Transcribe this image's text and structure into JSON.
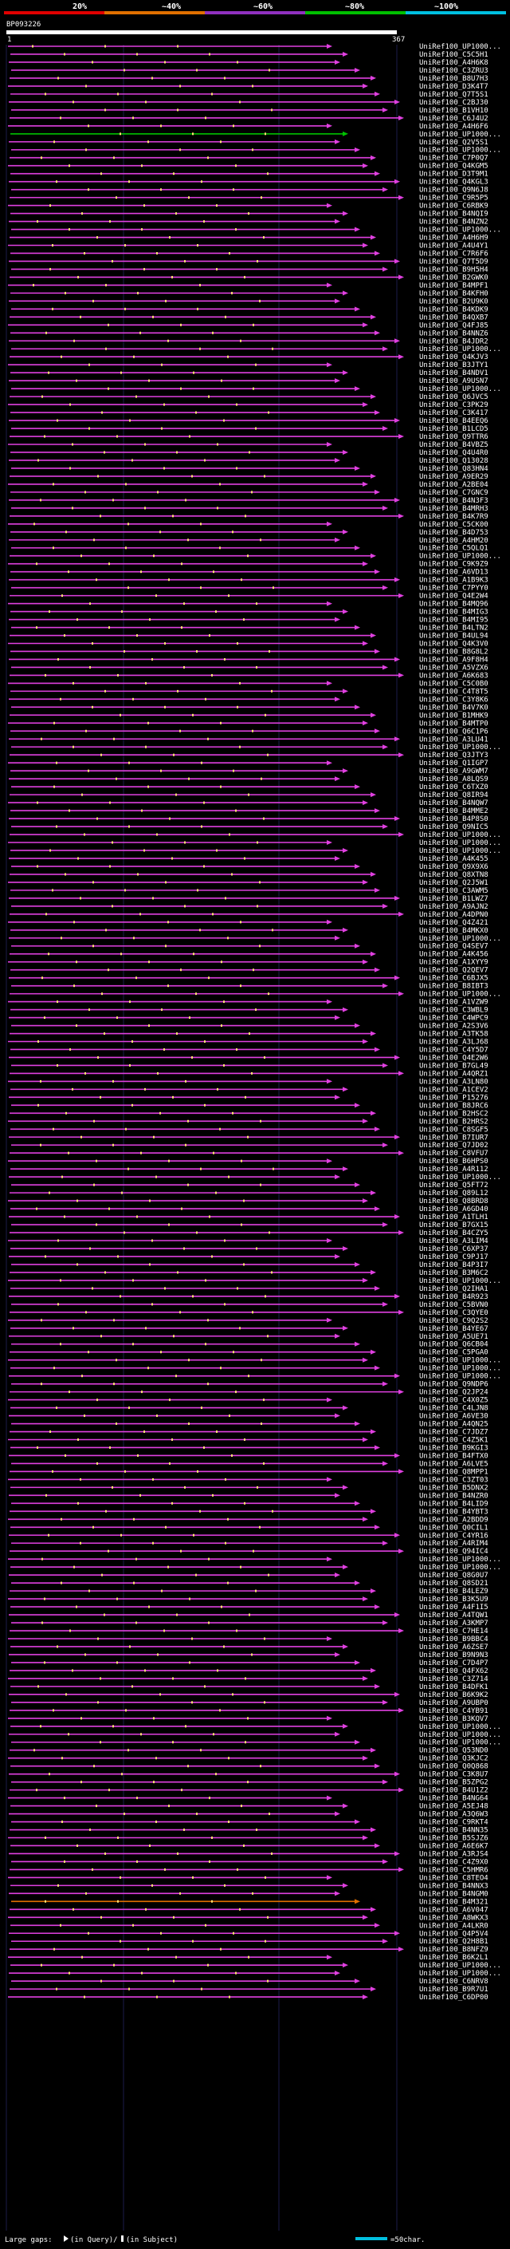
{
  "chart_data": {
    "type": "alignment-map",
    "query_id": "BP093226",
    "query_start": "1",
    "query_end": "367",
    "scale_labels": [
      "20%",
      "~40%",
      "~60%",
      "~80%",
      "~100%"
    ],
    "scale_colors": [
      "#e00000",
      "#e07000",
      "#9030c0",
      "#00c000",
      "#00c0e0"
    ],
    "hit_color": "#e040e0",
    "high_identity_color": "#00c000",
    "mid_identity_color": "#e07000",
    "subjects": [
      "UniRef100_UP1000...",
      "UniRef100_C5C5H1",
      "UniRef100_A4H6K8",
      "UniRef100_C3ZRU3",
      "UniRef100_B8U7H3",
      "UniRef100_D3K4T7",
      "UniRef100_Q7T5S1",
      "UniRef100_C2BJ30",
      "UniRef100_B1VH10",
      "UniRef100_C6J4U2",
      "UniRef100_A4H6F6",
      "UniRef100_UP1000...",
      "UniRef100_Q2V5S1",
      "UniRef100_UP1000...",
      "UniRef100_C7P0Q7",
      "UniRef100_Q4KGM5",
      "UniRef100_D3T9M1",
      "UniRef100_Q4KGL3",
      "UniRef100_Q9N6J8",
      "UniRef100_C9R5P5",
      "UniRef100_C6RBK9",
      "UniRef100_B4NQI9",
      "UniRef100_B4NZN2",
      "UniRef100_UP1000...",
      "UniRef100_A4H6H9",
      "UniRef100_A4U4Y1",
      "UniRef100_C7R6F6",
      "UniRef100_Q7T5D9",
      "UniRef100_B9H5H4",
      "UniRef100_B2GWK0",
      "UniRef100_B4MPF1",
      "UniRef100_B4KFH0",
      "UniRef100_B2U9K0",
      "UniRef100_B4KDK9",
      "UniRef100_B4QXB7",
      "UniRef100_Q4FJ85",
      "UniRef100_B4NNZ6",
      "UniRef100_B4JDR2",
      "UniRef100_UP1000...",
      "UniRef100_Q4KJV3",
      "UniRef100_B3JTY1",
      "UniRef100_B4NDV1",
      "UniRef100_A9USN7",
      "UniRef100_UP1000...",
      "UniRef100_Q6JVC5",
      "UniRef100_C3PK29",
      "UniRef100_C3K417",
      "UniRef100_B4EEQ6",
      "UniRef100_B1LCD5",
      "UniRef100_Q9TTR6",
      "UniRef100_B4VBZ5",
      "UniRef100_Q4U4R0",
      "UniRef100_Q13028",
      "UniRef100_Q83HN4",
      "UniRef100_A9ER29",
      "UniRef100_A2BE04",
      "UniRef100_C7GNC9",
      "UniRef100_B4N3F3",
      "UniRef100_B4MRH3",
      "UniRef100_B4K7R9",
      "UniRef100_C5CK00",
      "UniRef100_B4D753",
      "UniRef100_A4HM20",
      "UniRef100_C5QLQ1",
      "UniRef100_UP1000...",
      "UniRef100_C9K9Z9",
      "UniRef100_A6VD13",
      "UniRef100_A1B9K3",
      "UniRef100_C7PYY0",
      "UniRef100_Q4E2W4",
      "UniRef100_B4MQ96",
      "UniRef100_B4MIG3",
      "UniRef100_B4MI95",
      "UniRef100_B4LTN2",
      "UniRef100_B4UL94",
      "UniRef100_Q4K3V0",
      "UniRef100_B8G8L2",
      "UniRef100_A9F8H4",
      "UniRef100_A5VZX6",
      "UniRef100_A6K683",
      "UniRef100_C5C0B0",
      "UniRef100_C4T8T5",
      "UniRef100_C3Y8K6",
      "UniRef100_B4V7K0",
      "UniRef100_B1MHK9",
      "UniRef100_B4MTP0",
      "UniRef100_Q6C1P6",
      "UniRef100_A3LU41",
      "UniRef100_UP1000...",
      "UniRef100_Q3JTY3",
      "UniRef100_Q1IGP7",
      "UniRef100_A9GWM7",
      "UniRef100_A8LQS9",
      "UniRef100_C6TXZ0",
      "UniRef100_Q8IR94",
      "UniRef100_B4NQW7",
      "UniRef100_B4MME2",
      "UniRef100_B4P8S0",
      "UniRef100_Q9NIC5",
      "UniRef100_UP1000...",
      "UniRef100_UP1000...",
      "UniRef100_UP1000...",
      "UniRef100_A4K455",
      "UniRef100_Q9X9X6",
      "UniRef100_Q8XTN8",
      "UniRef100_Q2J5W1",
      "UniRef100_C3AWM5",
      "UniRef100_B1LWZ7",
      "UniRef100_A9AJN2",
      "UniRef100_A4DPN0",
      "UniRef100_Q4Z421",
      "UniRef100_B4MKX0",
      "UniRef100_UP1000...",
      "UniRef100_Q4SEV7",
      "UniRef100_A4K456",
      "UniRef100_A1XYY9",
      "UniRef100_Q2QEV7",
      "UniRef100_C6BJX5",
      "UniRef100_B8IBT3",
      "UniRef100_UP1000...",
      "UniRef100_A1VZW9",
      "UniRef100_C3WBL9",
      "UniRef100_C4WPC9",
      "UniRef100_A2S3V6",
      "UniRef100_A3TK58",
      "UniRef100_A3LJ68",
      "UniRef100_C4Y5D7",
      "UniRef100_Q4E2W6",
      "UniRef100_B7GL49",
      "UniRef100_A4QRZ1",
      "UniRef100_A3LN80",
      "UniRef100_A1CEV2",
      "UniRef100_P15276",
      "UniRef100_B8JRC6",
      "UniRef100_B2HSC2",
      "UniRef100_B2HRS2",
      "UniRef100_C8SGF5",
      "UniRef100_B7IUR7",
      "UniRef100_Q7JD02",
      "UniRef100_C8VFU7",
      "UniRef100_B6HPS0",
      "UniRef100_A4R112",
      "UniRef100_UP1000...",
      "UniRef100_Q5FT72",
      "UniRef100_Q89L12",
      "UniRef100_Q8BRD8",
      "UniRef100_A6GD40",
      "UniRef100_A1TLH1",
      "UniRef100_B7GX15",
      "UniRef100_B4CZY5",
      "UniRef100_A3LIM4",
      "UniRef100_C6XP37",
      "UniRef100_C9PJ17",
      "UniRef100_B4P3I7",
      "UniRef100_B3M6C2",
      "UniRef100_UP1000...",
      "UniRef100_Q2IHA1",
      "UniRef100_B4R923",
      "UniRef100_C5BVN0",
      "UniRef100_C3QYE0",
      "UniRef100_C9Q2S2",
      "UniRef100_B4YE67",
      "UniRef100_A5UE71",
      "UniRef100_Q6CB04",
      "UniRef100_C5PGA0",
      "UniRef100_UP1000...",
      "UniRef100_UP1000...",
      "UniRef100_UP1000...",
      "UniRef100_Q9NDP6",
      "UniRef100_Q2JP24",
      "UniRef100_C4X0Z5",
      "UniRef100_C4LJN8",
      "UniRef100_A6VE30",
      "UniRef100_A4QN25",
      "UniRef100_C7JDZ7",
      "UniRef100_C4Z5K1",
      "UniRef100_B9KGI3",
      "UniRef100_B4FTX0",
      "UniRef100_A6LVE5",
      "UniRef100_Q8MPP1",
      "UniRef100_C3ZT03",
      "UniRef100_B5DNX2",
      "UniRef100_B4NZR0",
      "UniRef100_B4LID9",
      "UniRef100_B4YBT3",
      "UniRef100_A2BDD9",
      "UniRef100_Q0CIL1",
      "UniRef100_C4YR16",
      "UniRef100_A4RIM4",
      "UniRef100_Q94IC4",
      "UniRef100_UP1000...",
      "UniRef100_UP1000...",
      "UniRef100_Q8G0U7",
      "UniRef100_Q8SD21",
      "UniRef100_B4LEZ9",
      "UniRef100_B3K5U9",
      "UniRef100_A4F1I5",
      "UniRef100_A4TQW1",
      "UniRef100_A3KMP7",
      "UniRef100_C7HE14",
      "UniRef100_B9BBC4",
      "UniRef100_A6ZSE7",
      "UniRef100_B9N9N3",
      "UniRef100_C7D4P7",
      "UniRef100_Q4FX62",
      "UniRef100_C3Z714",
      "UniRef100_B4DFK1",
      "UniRef100_B6K9K2",
      "UniRef100_A9UBP0",
      "UniRef100_C4YB91",
      "UniRef100_B3KQV7",
      "UniRef100_UP1000...",
      "UniRef100_UP1000...",
      "UniRef100_UP1000...",
      "UniRef100_Q53ND0",
      "UniRef100_Q3KJC2",
      "UniRef100_Q0Q868",
      "UniRef100_C3K8U7",
      "UniRef100_B5ZPG2",
      "UniRef100_B4U1Z2",
      "UniRef100_B4NG64",
      "UniRef100_A5EJ48",
      "UniRef100_A3Q6W3",
      "UniRef100_C9RKT4",
      "UniRef100_B4NN35",
      "UniRef100_B5SJZ6",
      "UniRef100_A6E6K7",
      "UniRef100_A3RJS4",
      "UniRef100_C4Z9X0",
      "UniRef100_C5HMR6",
      "UniRef100_C8TEO4",
      "UniRef100_B4NNX3",
      "UniRef100_B4NGM0",
      "UniRef100_B4M321",
      "UniRef100_A6V047",
      "UniRef100_A8WKX3",
      "UniRef100_A4LKR0",
      "UniRef100_Q4P5V4",
      "UniRef100_Q2H8B1",
      "UniRef100_B8NFZ9",
      "UniRef100_B6K2L1",
      "UniRef100_UP1000...",
      "UniRef100_UP1000...",
      "UniRef100_C6NRV8",
      "UniRef100_B9R7U1",
      "UniRef100_C6DP00"
    ],
    "legend": {
      "gaps_label": "Large gaps:",
      "gaps_desc": "(in Query)/",
      "gaps_desc2": "(in Subject)",
      "scale_label": "=50char."
    }
  }
}
